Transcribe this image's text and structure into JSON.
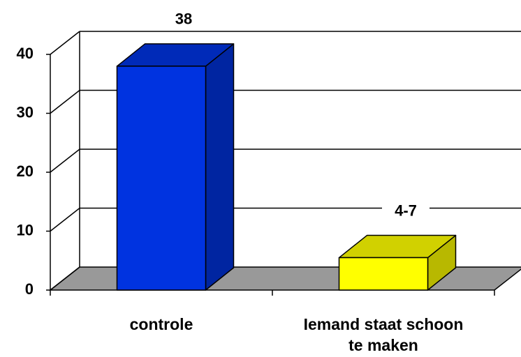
{
  "chart_data": {
    "type": "bar3d",
    "categories": [
      "controle",
      "Iemand staat schoon te maken"
    ],
    "values": [
      38,
      5.5
    ],
    "value_labels": [
      "38",
      "4-7"
    ],
    "colors": [
      "#0033e0",
      "#ffff00"
    ],
    "ylim": [
      0,
      40
    ],
    "yticks": [
      0,
      10,
      20,
      30,
      40
    ],
    "grid": true
  }
}
